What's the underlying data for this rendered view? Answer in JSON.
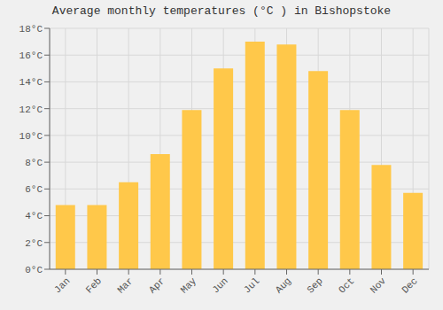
{
  "chart_data": {
    "type": "bar",
    "title": "Average monthly temperatures (°C ) in Bishopstoke",
    "categories": [
      "Jan",
      "Feb",
      "Mar",
      "Apr",
      "May",
      "Jun",
      "Jul",
      "Aug",
      "Sep",
      "Oct",
      "Nov",
      "Dec"
    ],
    "values": [
      4.8,
      4.8,
      6.5,
      8.6,
      11.9,
      15.0,
      17.0,
      16.8,
      14.8,
      11.9,
      7.8,
      5.7
    ],
    "color": "#FFC84A",
    "ylim": [
      0,
      18
    ],
    "yticks": [
      {
        "value": 0,
        "label": "0°C"
      },
      {
        "value": 2,
        "label": "2°C"
      },
      {
        "value": 4,
        "label": "4°C"
      },
      {
        "value": 6,
        "label": "6°C"
      },
      {
        "value": 8,
        "label": "8°C"
      },
      {
        "value": 10,
        "label": "10°C"
      },
      {
        "value": 12,
        "label": "12°C"
      },
      {
        "value": 14,
        "label": "14°C"
      },
      {
        "value": 16,
        "label": "16°C"
      },
      {
        "value": 18,
        "label": "18°C"
      }
    ],
    "grid": true
  }
}
